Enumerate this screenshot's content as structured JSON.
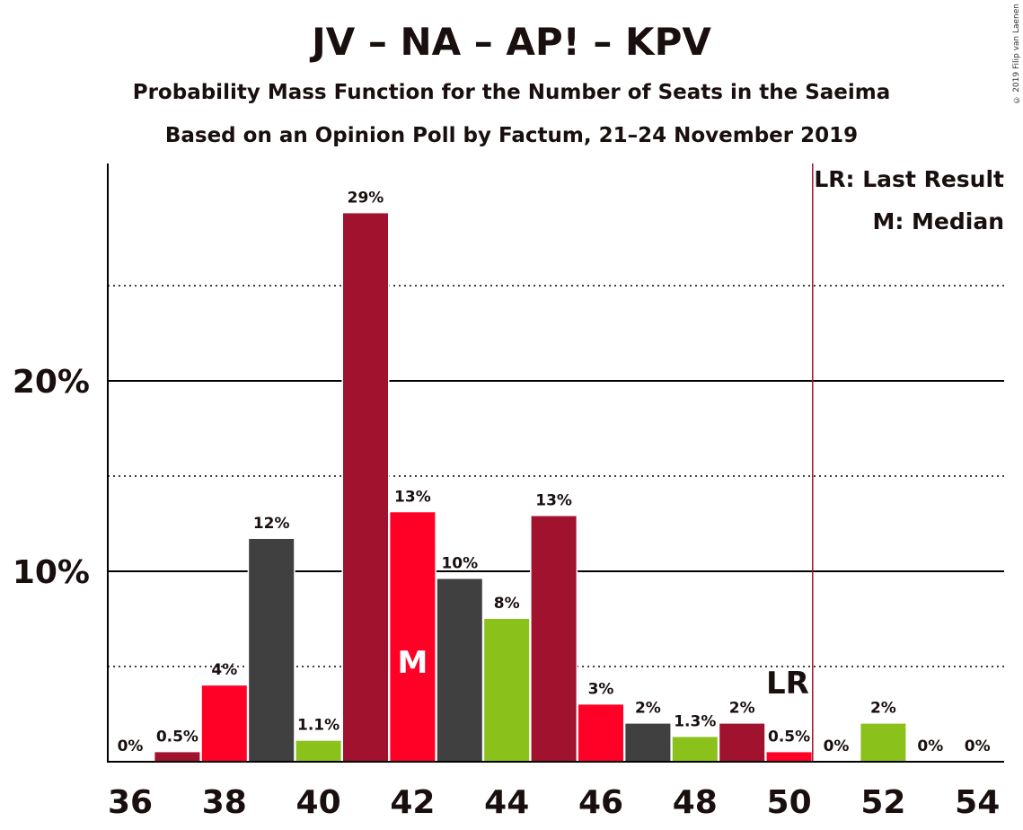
{
  "title": "JV – NA – AP! – KPV",
  "subtitle1": "Probability Mass Function for the Number of Seats in the Saeima",
  "subtitle2": "Based on an Opinion Poll by Factum, 21–24 November 2019",
  "copyright": "© 2019 Filip van Laenen",
  "legend": {
    "last_result": "LR: Last Result",
    "median": "M: Median"
  },
  "colors": {
    "dark_red": "#A0122E",
    "red": "#FF0026",
    "dark_grey": "#404040",
    "green": "#8AC11B",
    "lr_line": "#A0122E"
  },
  "chart_data": {
    "type": "bar",
    "title": "JV – NA – AP! – KPV",
    "xlabel": "",
    "ylabel": "",
    "x": [
      36,
      37,
      38,
      39,
      40,
      41,
      42,
      43,
      44,
      45,
      46,
      47,
      48,
      49,
      50,
      51,
      52,
      53,
      54
    ],
    "values": [
      0,
      0.5,
      4,
      11.7,
      1.1,
      28.8,
      13.1,
      9.6,
      7.5,
      12.9,
      3,
      2,
      1.3,
      2,
      0.5,
      0,
      2,
      0,
      0
    ],
    "labels": [
      "0%",
      "0.5%",
      "4%",
      "12%",
      "1.1%",
      "29%",
      "13%",
      "10%",
      "8%",
      "13%",
      "3%",
      "2%",
      "1.3%",
      "2%",
      "0.5%",
      "0%",
      "2%",
      "0%",
      "0%"
    ],
    "bar_colors": [
      "#A0122E",
      "#A0122E",
      "#FF0026",
      "#404040",
      "#8AC11B",
      "#A0122E",
      "#FF0026",
      "#404040",
      "#8AC11B",
      "#A0122E",
      "#FF0026",
      "#404040",
      "#8AC11B",
      "#A0122E",
      "#FF0026",
      "#404040",
      "#8AC11B",
      "#A0122E",
      "#FF0026"
    ],
    "x_ticks": [
      36,
      38,
      40,
      42,
      44,
      46,
      48,
      50,
      52,
      54
    ],
    "y_ticks": [
      {
        "value": 10,
        "label": "10%"
      },
      {
        "value": 20,
        "label": "20%"
      }
    ],
    "dotted_gridlines": [
      5,
      15,
      25
    ],
    "ylim": [
      0,
      31.5
    ],
    "median": 42,
    "median_label": "M",
    "last_result": 50.5,
    "last_result_label": "LR",
    "grid": true,
    "legend_position": "top-right"
  }
}
